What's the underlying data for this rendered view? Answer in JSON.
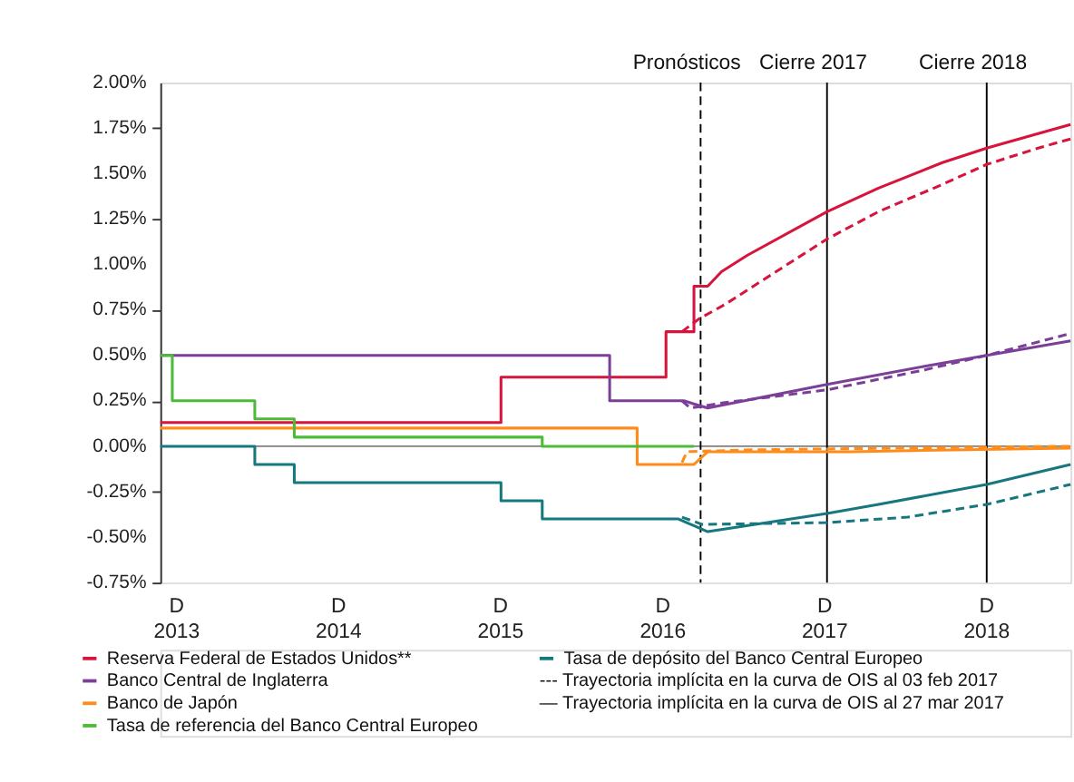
{
  "chart_data": {
    "type": "line",
    "legend": "bottom",
    "grid": false,
    "marker": "none",
    "xlim": [
      "2013-11-08",
      "2019-06-22"
    ],
    "xticks": [
      {
        "value": "2013-12-15",
        "label": "D\n2013"
      },
      {
        "value": "2014-12-15",
        "label": "D\n2014"
      },
      {
        "value": "2015-12-15",
        "label": "D\n2015"
      },
      {
        "value": "2016-12-15",
        "label": "D\n2016"
      },
      {
        "value": "2017-12-15",
        "label": "D\n2017"
      },
      {
        "value": "2018-12-15",
        "label": "D\n2018"
      }
    ],
    "ylim": [
      -0.75,
      2.0
    ],
    "yticks": [
      {
        "value": -0.75,
        "label": "-0.75%"
      },
      {
        "value": -0.5,
        "label": "-0.50%"
      },
      {
        "value": -0.25,
        "label": "-0.25%"
      },
      {
        "value": 0.0,
        "label": "0.00%"
      },
      {
        "value": 0.25,
        "label": "0.25%"
      },
      {
        "value": 0.5,
        "label": "0.50%"
      },
      {
        "value": 0.75,
        "label": "0.75%"
      },
      {
        "value": 1.0,
        "label": "1.00%"
      },
      {
        "value": 1.25,
        "label": "1.25%"
      },
      {
        "value": 1.5,
        "label": "1.50%"
      },
      {
        "value": 1.75,
        "label": "1.75%"
      },
      {
        "value": 2.0,
        "label": "2.00%"
      }
    ],
    "series": [
      {
        "name": "Reserva Federal de Estados Unidos**",
        "color": "#d7143c",
        "line_style": "solid",
        "x": [
          "2013-11-08",
          "2015-12-16",
          "2015-12-16",
          "2016-12-22",
          "2016-12-22",
          "2017-02-23",
          "2017-02-23",
          "2017-03-26",
          "2017-04-26",
          "2017-06-23",
          "2017-12-20",
          "2018-04-15",
          "2018-09-06",
          "2018-12-15",
          "2019-04-10",
          "2019-06-22"
        ],
        "values": [
          0.13,
          0.13,
          0.38,
          0.38,
          0.63,
          0.63,
          0.88,
          0.88,
          0.96,
          1.05,
          1.29,
          1.42,
          1.56,
          1.64,
          1.72,
          1.77
        ]
      },
      {
        "name": "Banco Central de Inglaterra",
        "color": "#7b3f98",
        "line_style": "solid",
        "x": [
          "2013-11-08",
          "2016-08-17",
          "2016-08-17",
          "2017-01-31",
          "2017-03-26",
          "2017-12-20",
          "2018-07-28",
          "2018-12-15",
          "2019-06-22"
        ],
        "values": [
          0.5,
          0.5,
          0.25,
          0.25,
          0.21,
          0.34,
          0.44,
          0.5,
          0.58
        ]
      },
      {
        "name": "Banco de Japón",
        "color": "#ff8c1a",
        "line_style": "solid",
        "x": [
          "2013-11-08",
          "2016-10-18",
          "2016-10-18",
          "2017-02-23",
          "2017-03-26",
          "2018-02-09",
          "2019-06-22"
        ],
        "values": [
          0.1,
          0.1,
          -0.1,
          -0.1,
          -0.03,
          -0.03,
          -0.01
        ]
      },
      {
        "name": "Tasa de referencia del Banco Central Europeo",
        "color": "#4cbb38",
        "line_style": "solid",
        "x": [
          "2013-11-08",
          "2013-12-05",
          "2013-12-05",
          "2014-06-09",
          "2014-06-09",
          "2014-09-06",
          "2014-09-06",
          "2016-03-18",
          "2016-03-18",
          "2017-02-23"
        ],
        "values": [
          0.5,
          0.5,
          0.25,
          0.25,
          0.15,
          0.15,
          0.05,
          0.05,
          0.0,
          0.0
        ]
      },
      {
        "name": "Tasa de depósito del Banco Central Europeo",
        "color": "#16787e",
        "line_style": "solid",
        "x": [
          "2013-11-08",
          "2014-06-09",
          "2014-06-09",
          "2014-09-06",
          "2014-09-06",
          "2015-12-16",
          "2015-12-16",
          "2016-03-18",
          "2016-03-18",
          "2017-01-19",
          "2017-03-26",
          "2017-12-20",
          "2018-04-15",
          "2018-12-15",
          "2019-06-22"
        ],
        "values": [
          0.0,
          0.0,
          -0.1,
          -0.1,
          -0.2,
          -0.2,
          -0.3,
          -0.3,
          -0.4,
          -0.4,
          -0.47,
          -0.37,
          -0.32,
          -0.21,
          -0.1
        ]
      },
      {
        "color": "#d7143c",
        "line_style": "dashed",
        "x": [
          "2017-01-27",
          "2017-03-06",
          "2017-05-04",
          "2017-12-20",
          "2018-04-15",
          "2018-09-06",
          "2018-12-15",
          "2019-04-10",
          "2019-06-22"
        ],
        "values": [
          0.63,
          0.7,
          0.78,
          1.14,
          1.29,
          1.44,
          1.55,
          1.64,
          1.69
        ]
      },
      {
        "color": "#7b3f98",
        "line_style": "dashed",
        "x": [
          "2017-01-27",
          "2017-02-15",
          "2017-05-04",
          "2017-12-20",
          "2018-07-28",
          "2018-12-15",
          "2019-06-22"
        ],
        "values": [
          0.25,
          0.21,
          0.24,
          0.31,
          0.42,
          0.5,
          0.62
        ]
      },
      {
        "color": "#ff8c1a",
        "line_style": "dashed",
        "x": [
          "2017-01-27",
          "2017-02-07",
          "2017-06-23",
          "2019-06-22"
        ],
        "values": [
          -0.09,
          -0.03,
          -0.02,
          0.0
        ]
      },
      {
        "color": "#16787e",
        "line_style": "dashed",
        "x": [
          "2017-01-27",
          "2017-03-14",
          "2017-12-20",
          "2018-06-20",
          "2018-12-15",
          "2019-06-22"
        ],
        "values": [
          -0.39,
          -0.43,
          -0.42,
          -0.39,
          -0.32,
          -0.21
        ]
      }
    ],
    "ref_lines": [
      {
        "axis": "y",
        "value": 0.0,
        "label": null,
        "color": "#808080",
        "line_style": "solid"
      },
      {
        "axis": "x",
        "value": "2017-03-10",
        "label": "Pronósticos",
        "color": "#000000",
        "line_style": "dashed"
      },
      {
        "axis": "x",
        "value": "2017-12-20",
        "label": "Cierre 2017",
        "color": "#000000",
        "line_style": "solid"
      },
      {
        "axis": "x",
        "value": "2018-12-15",
        "label": "Cierre 2018",
        "color": "#000000",
        "line_style": "solid"
      }
    ],
    "annotations": [
      "--- Trayectoria implícita en la curva de OIS al 03 feb 2017",
      "—  Trayectoria implícita en la curva de OIS al  27 mar 2017"
    ]
  }
}
